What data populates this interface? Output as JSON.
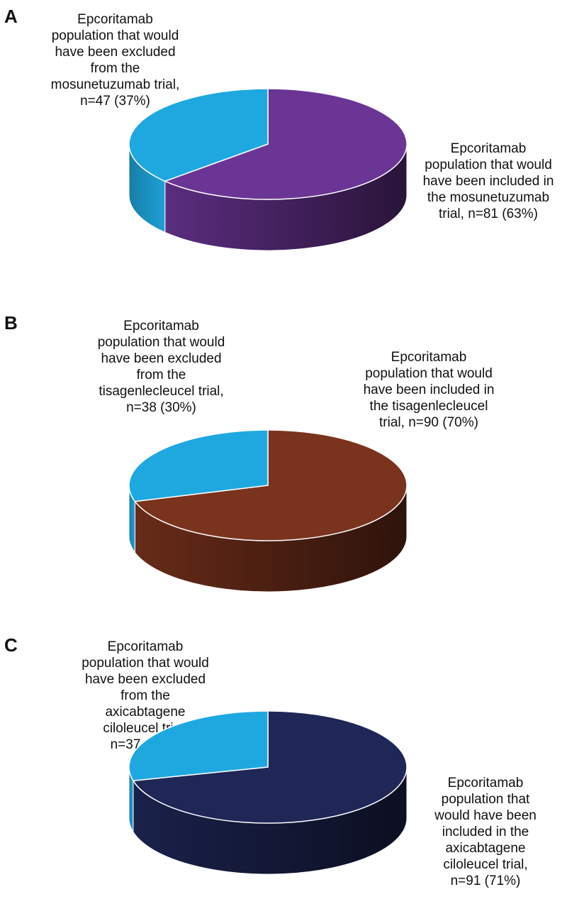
{
  "chart_data": [
    {
      "type": "pie",
      "panel_letter": "A",
      "slices": [
        {
          "name": "excluded",
          "value": 47,
          "percent": 37,
          "color": "#1FA8E0",
          "label": "Epcoritamab\npopulation that would\nhave been excluded\nfrom the\nmosunetuzumab trial,\nn=47 (37%)"
        },
        {
          "name": "included",
          "value": 81,
          "percent": 63,
          "color": "#6B3595",
          "label": "Epcoritamab\npopulation that would\nhave been included in\nthe mosunetuzumab\ntrial, n=81 (63%)"
        }
      ]
    },
    {
      "type": "pie",
      "panel_letter": "B",
      "slices": [
        {
          "name": "excluded",
          "value": 38,
          "percent": 30,
          "color": "#1FA8E0",
          "label": "Epcoritamab\npopulation that would\nhave been excluded\nfrom the\ntisagenlecleucel trial,\nn=38 (30%)"
        },
        {
          "name": "included",
          "value": 90,
          "percent": 70,
          "color": "#7A331C",
          "label": "Epcoritamab\npopulation that would\nhave been included in\nthe tisagenlecleucel\ntrial, n=90 (70%)"
        }
      ]
    },
    {
      "type": "pie",
      "panel_letter": "C",
      "slices": [
        {
          "name": "excluded",
          "value": 37,
          "percent": 29,
          "color": "#1FA8E0",
          "label": "Epcoritamab\npopulation that would\nhave been excluded\nfrom the\naxicabtagene\nciloleucel trial,\nn=37 (29%)"
        },
        {
          "name": "included",
          "value": 91,
          "percent": 71,
          "color": "#1F2757",
          "label": "Epcoritamab\npopulation that\nwould have been\nincluded in the\naxicabtagene\nciloleucel trial,\nn=91 (71%)"
        }
      ]
    }
  ]
}
